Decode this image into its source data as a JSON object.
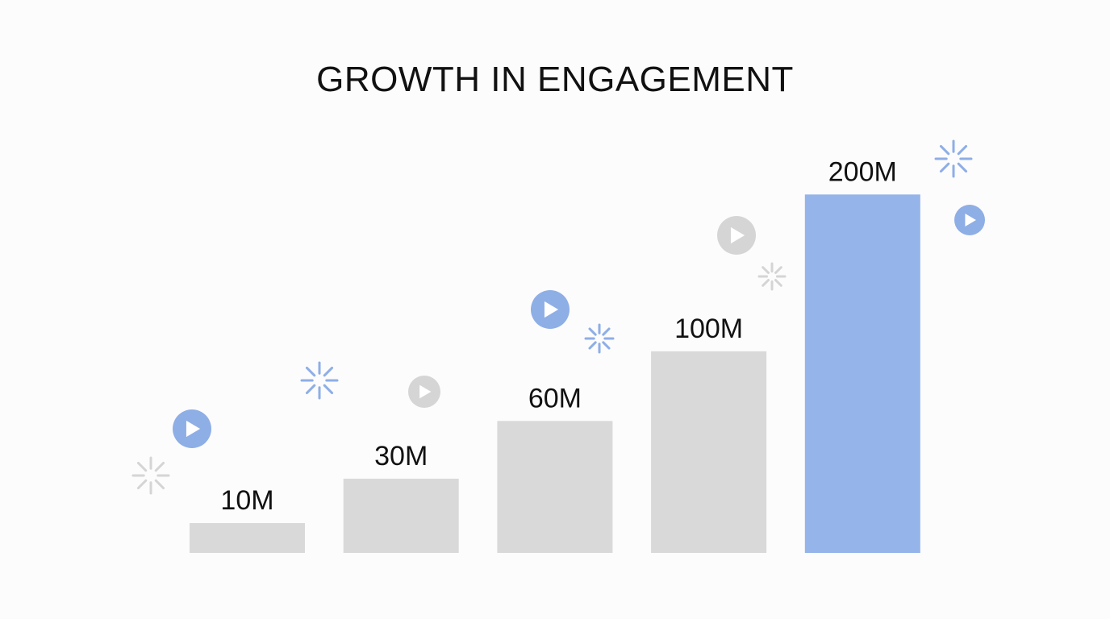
{
  "chart_data": {
    "type": "bar",
    "title": "GROWTH IN ENGAGEMENT",
    "categories": [
      "",
      "",
      "",
      "",
      ""
    ],
    "values": [
      10,
      30,
      60,
      100,
      200
    ],
    "data_labels": [
      "10M",
      "30M",
      "60M",
      "100M",
      "200M"
    ],
    "xlabel": "",
    "ylabel": "",
    "grid": false,
    "axes_visible": false,
    "colors": {
      "default_bar": "#d9d9d9",
      "highlight_bar": "#94b4ea",
      "accent_icon": "#8eaee6",
      "muted_icon": "#d5d5d5"
    },
    "highlight_index": 4,
    "decorations": [
      "play-icon",
      "sparkle-icon"
    ]
  }
}
